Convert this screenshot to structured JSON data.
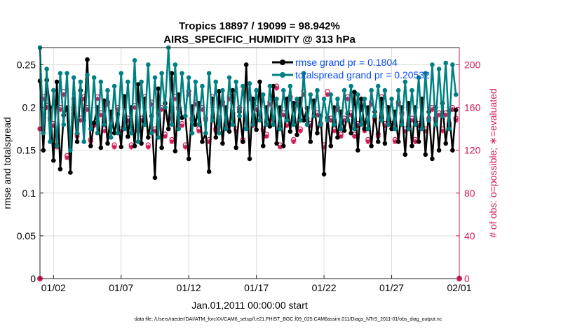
{
  "chart_data": {
    "type": "line",
    "title_line1": "Tropics 18897 / 19099 = 98.942%",
    "title_line2": "AIRS_SPECIFIC_HUMIDITY @ 313 hPa",
    "xlabel": "Jan.01,2011 00:00:00 start",
    "ylabel_left": "rmse and totalspread",
    "ylabel_right": "# of obs: o=possible; ∗=evaluated",
    "xlim": [
      0,
      31
    ],
    "ylim_left": [
      0,
      0.27
    ],
    "ylim_right": [
      0,
      216
    ],
    "x_ticks": [
      {
        "value": 1,
        "label": "01/02"
      },
      {
        "value": 6,
        "label": "01/07"
      },
      {
        "value": 11,
        "label": "01/12"
      },
      {
        "value": 16,
        "label": "01/17"
      },
      {
        "value": 21,
        "label": "01/22"
      },
      {
        "value": 26,
        "label": "01/27"
      },
      {
        "value": 31,
        "label": "02/01"
      }
    ],
    "y_ticks_left": [
      {
        "value": 0,
        "label": "0"
      },
      {
        "value": 0.05,
        "label": "0.05"
      },
      {
        "value": 0.1,
        "label": "0.1"
      },
      {
        "value": 0.15,
        "label": "0.15"
      },
      {
        "value": 0.2,
        "label": "0.2"
      },
      {
        "value": 0.25,
        "label": "0.25"
      }
    ],
    "y_ticks_right": [
      {
        "value": 0,
        "label": "0"
      },
      {
        "value": 40,
        "label": "40"
      },
      {
        "value": 80,
        "label": "80"
      },
      {
        "value": 120,
        "label": "120"
      },
      {
        "value": 160,
        "label": "160"
      },
      {
        "value": 200,
        "label": "200"
      }
    ],
    "legend": {
      "placement": "top-right",
      "entries": [
        "rmse grand pr = 0.1804",
        "totalspread grand pr = 0.20532"
      ]
    },
    "grid": true,
    "colors": {
      "rmse": "#000000",
      "spread": "#008080",
      "obs": "#d6185a",
      "legend_text": "#0a4ff0"
    },
    "series_summary": {
      "time_steps": 124,
      "interval_days": 0.25,
      "rmse_range": [
        0.118,
        0.256
      ],
      "spread_range": [
        0.145,
        0.27
      ],
      "obs_range": [
        105,
        185
      ]
    },
    "x": [
      0,
      0.25,
      0.5,
      0.75,
      1,
      1.25,
      1.5,
      1.75,
      2,
      2.25,
      2.5,
      2.75,
      3,
      3.25,
      3.5,
      3.75,
      4,
      4.25,
      4.5,
      4.75,
      5,
      5.25,
      5.5,
      5.75,
      6,
      6.25,
      6.5,
      6.75,
      7,
      7.25,
      7.5,
      7.75,
      8,
      8.25,
      8.5,
      8.75,
      9,
      9.25,
      9.5,
      9.75,
      10,
      10.25,
      10.5,
      10.75,
      11,
      11.25,
      11.5,
      11.75,
      12,
      12.25,
      12.5,
      12.75,
      13,
      13.25,
      13.5,
      13.75,
      14,
      14.25,
      14.5,
      14.75,
      15,
      15.25,
      15.5,
      15.75,
      16,
      16.25,
      16.5,
      16.75,
      17,
      17.25,
      17.5,
      17.75,
      18,
      18.25,
      18.5,
      18.75,
      19,
      19.25,
      19.5,
      19.75,
      20,
      20.25,
      20.5,
      20.75,
      21,
      21.25,
      21.5,
      21.75,
      22,
      22.25,
      22.5,
      22.75,
      23,
      23.25,
      23.5,
      23.75,
      24,
      24.25,
      24.5,
      24.75,
      25,
      25.25,
      25.5,
      25.75,
      26,
      26.25,
      26.5,
      26.75,
      27,
      27.25,
      27.5,
      27.75,
      28,
      28.25,
      28.5,
      28.75,
      29,
      29.25,
      29.5,
      29.75,
      30,
      30.25,
      30.5,
      30.75
    ],
    "rmse": [
      0.231,
      0.15,
      0.232,
      0.2,
      0.138,
      0.23,
      0.128,
      0.191,
      0.2,
      0.124,
      0.21,
      0.16,
      0.22,
      0.185,
      0.256,
      0.155,
      0.182,
      0.2,
      0.153,
      0.208,
      0.158,
      0.195,
      0.17,
      0.192,
      0.154,
      0.213,
      0.166,
      0.2,
      0.155,
      0.227,
      0.158,
      0.21,
      0.165,
      0.19,
      0.118,
      0.222,
      0.153,
      0.205,
      0.175,
      0.24,
      0.149,
      0.215,
      0.188,
      0.19,
      0.14,
      0.201,
      0.18,
      0.205,
      0.16,
      0.17,
      0.125,
      0.21,
      0.165,
      0.219,
      0.158,
      0.2,
      0.172,
      0.22,
      0.153,
      0.195,
      0.16,
      0.25,
      0.14,
      0.21,
      0.174,
      0.23,
      0.155,
      0.2,
      0.178,
      0.225,
      0.158,
      0.2,
      0.155,
      0.21,
      0.172,
      0.205,
      0.168,
      0.21,
      0.185,
      0.199,
      0.16,
      0.208,
      0.17,
      0.19,
      0.122,
      0.188,
      0.155,
      0.2,
      0.165,
      0.195,
      0.173,
      0.193,
      0.17,
      0.218,
      0.15,
      0.21,
      0.175,
      0.2,
      0.155,
      0.195,
      0.16,
      0.21,
      0.158,
      0.2,
      0.175,
      0.195,
      0.16,
      0.2,
      0.145,
      0.205,
      0.155,
      0.2,
      0.16,
      0.21,
      0.145,
      0.195,
      0.14,
      0.2,
      0.15,
      0.205,
      0.158,
      0.196,
      0.15,
      0.197
    ],
    "spread": [
      0.27,
      0.17,
      0.245,
      0.16,
      0.22,
      0.155,
      0.24,
      0.18,
      0.24,
      0.15,
      0.235,
      0.17,
      0.23,
      0.16,
      0.238,
      0.175,
      0.235,
      0.17,
      0.23,
      0.18,
      0.22,
      0.165,
      0.225,
      0.17,
      0.24,
      0.175,
      0.23,
      0.17,
      0.255,
      0.16,
      0.23,
      0.18,
      0.25,
      0.17,
      0.235,
      0.165,
      0.24,
      0.2,
      0.27,
      0.18,
      0.25,
      0.175,
      0.24,
      0.19,
      0.235,
      0.17,
      0.23,
      0.18,
      0.225,
      0.17,
      0.24,
      0.185,
      0.23,
      0.17,
      0.22,
      0.175,
      0.235,
      0.18,
      0.23,
      0.19,
      0.225,
      0.175,
      0.228,
      0.18,
      0.22,
      0.185,
      0.215,
      0.18,
      0.225,
      0.18,
      0.21,
      0.175,
      0.22,
      0.185,
      0.225,
      0.18,
      0.21,
      0.185,
      0.24,
      0.18,
      0.215,
      0.19,
      0.22,
      0.18,
      0.21,
      0.185,
      0.215,
      0.18,
      0.21,
      0.175,
      0.22,
      0.185,
      0.225,
      0.175,
      0.215,
      0.18,
      0.21,
      0.175,
      0.22,
      0.19,
      0.225,
      0.185,
      0.22,
      0.18,
      0.21,
      0.175,
      0.22,
      0.18,
      0.23,
      0.175,
      0.22,
      0.18,
      0.235,
      0.175,
      0.24,
      0.185,
      0.25,
      0.18,
      0.245,
      0.19,
      0.252,
      0.175,
      0.25,
      0.215
    ],
    "obs_possible": [
      140,
      170,
      162,
      150,
      145,
      125,
      160,
      175,
      115,
      140,
      160,
      135,
      150,
      170,
      160,
      130,
      145,
      170,
      155,
      140,
      165,
      150,
      125,
      160,
      140,
      170,
      150,
      125,
      162,
      140,
      150,
      170,
      125,
      165,
      140,
      155,
      160,
      135,
      150,
      130,
      170,
      160,
      145,
      125,
      175,
      150,
      165,
      140,
      160,
      150,
      130,
      170,
      140,
      150,
      165,
      145,
      170,
      155,
      140,
      160,
      130,
      150,
      170,
      145,
      160,
      155,
      140,
      135,
      165,
      150,
      180,
      125,
      155,
      145,
      170,
      130,
      165,
      140,
      175,
      150,
      145,
      160,
      155,
      145,
      125,
      175,
      150,
      140,
      160,
      135,
      150,
      170,
      155,
      135,
      145,
      160,
      140,
      130,
      165,
      150,
      135,
      170,
      145,
      160,
      145,
      130,
      165,
      155,
      140,
      160,
      150,
      130,
      145,
      165,
      140,
      150,
      160,
      150,
      155,
      140,
      155,
      145,
      160,
      150
    ],
    "obs_evaluated": [
      140,
      168,
      160,
      148,
      143,
      123,
      158,
      172,
      113,
      138,
      158,
      133,
      148,
      168,
      158,
      128,
      143,
      168,
      153,
      138,
      163,
      148,
      123,
      158,
      138,
      168,
      148,
      123,
      160,
      138,
      148,
      168,
      123,
      163,
      138,
      153,
      158,
      133,
      148,
      128,
      168,
      158,
      143,
      123,
      172,
      148,
      163,
      138,
      158,
      148,
      128,
      168,
      138,
      148,
      163,
      143,
      168,
      153,
      138,
      158,
      128,
      148,
      168,
      143,
      158,
      153,
      138,
      133,
      163,
      148,
      178,
      123,
      153,
      143,
      168,
      128,
      163,
      138,
      172,
      148,
      143,
      158,
      153,
      143,
      123,
      172,
      148,
      138,
      158,
      133,
      148,
      168,
      153,
      133,
      143,
      158,
      138,
      128,
      163,
      148,
      133,
      168,
      143,
      158,
      143,
      128,
      163,
      153,
      138,
      158,
      148,
      128,
      143,
      163,
      138,
      148,
      158,
      148,
      153,
      138,
      153,
      143,
      158,
      148
    ]
  },
  "footer": "data file: /Users/raeder/DAI/ATM_forcXX/CAM6_setup/f.e21.FHIST_BGC.f09_025.CAM6assim.011/Diags_NTrS_2011-01/obs_diag_output.nc"
}
